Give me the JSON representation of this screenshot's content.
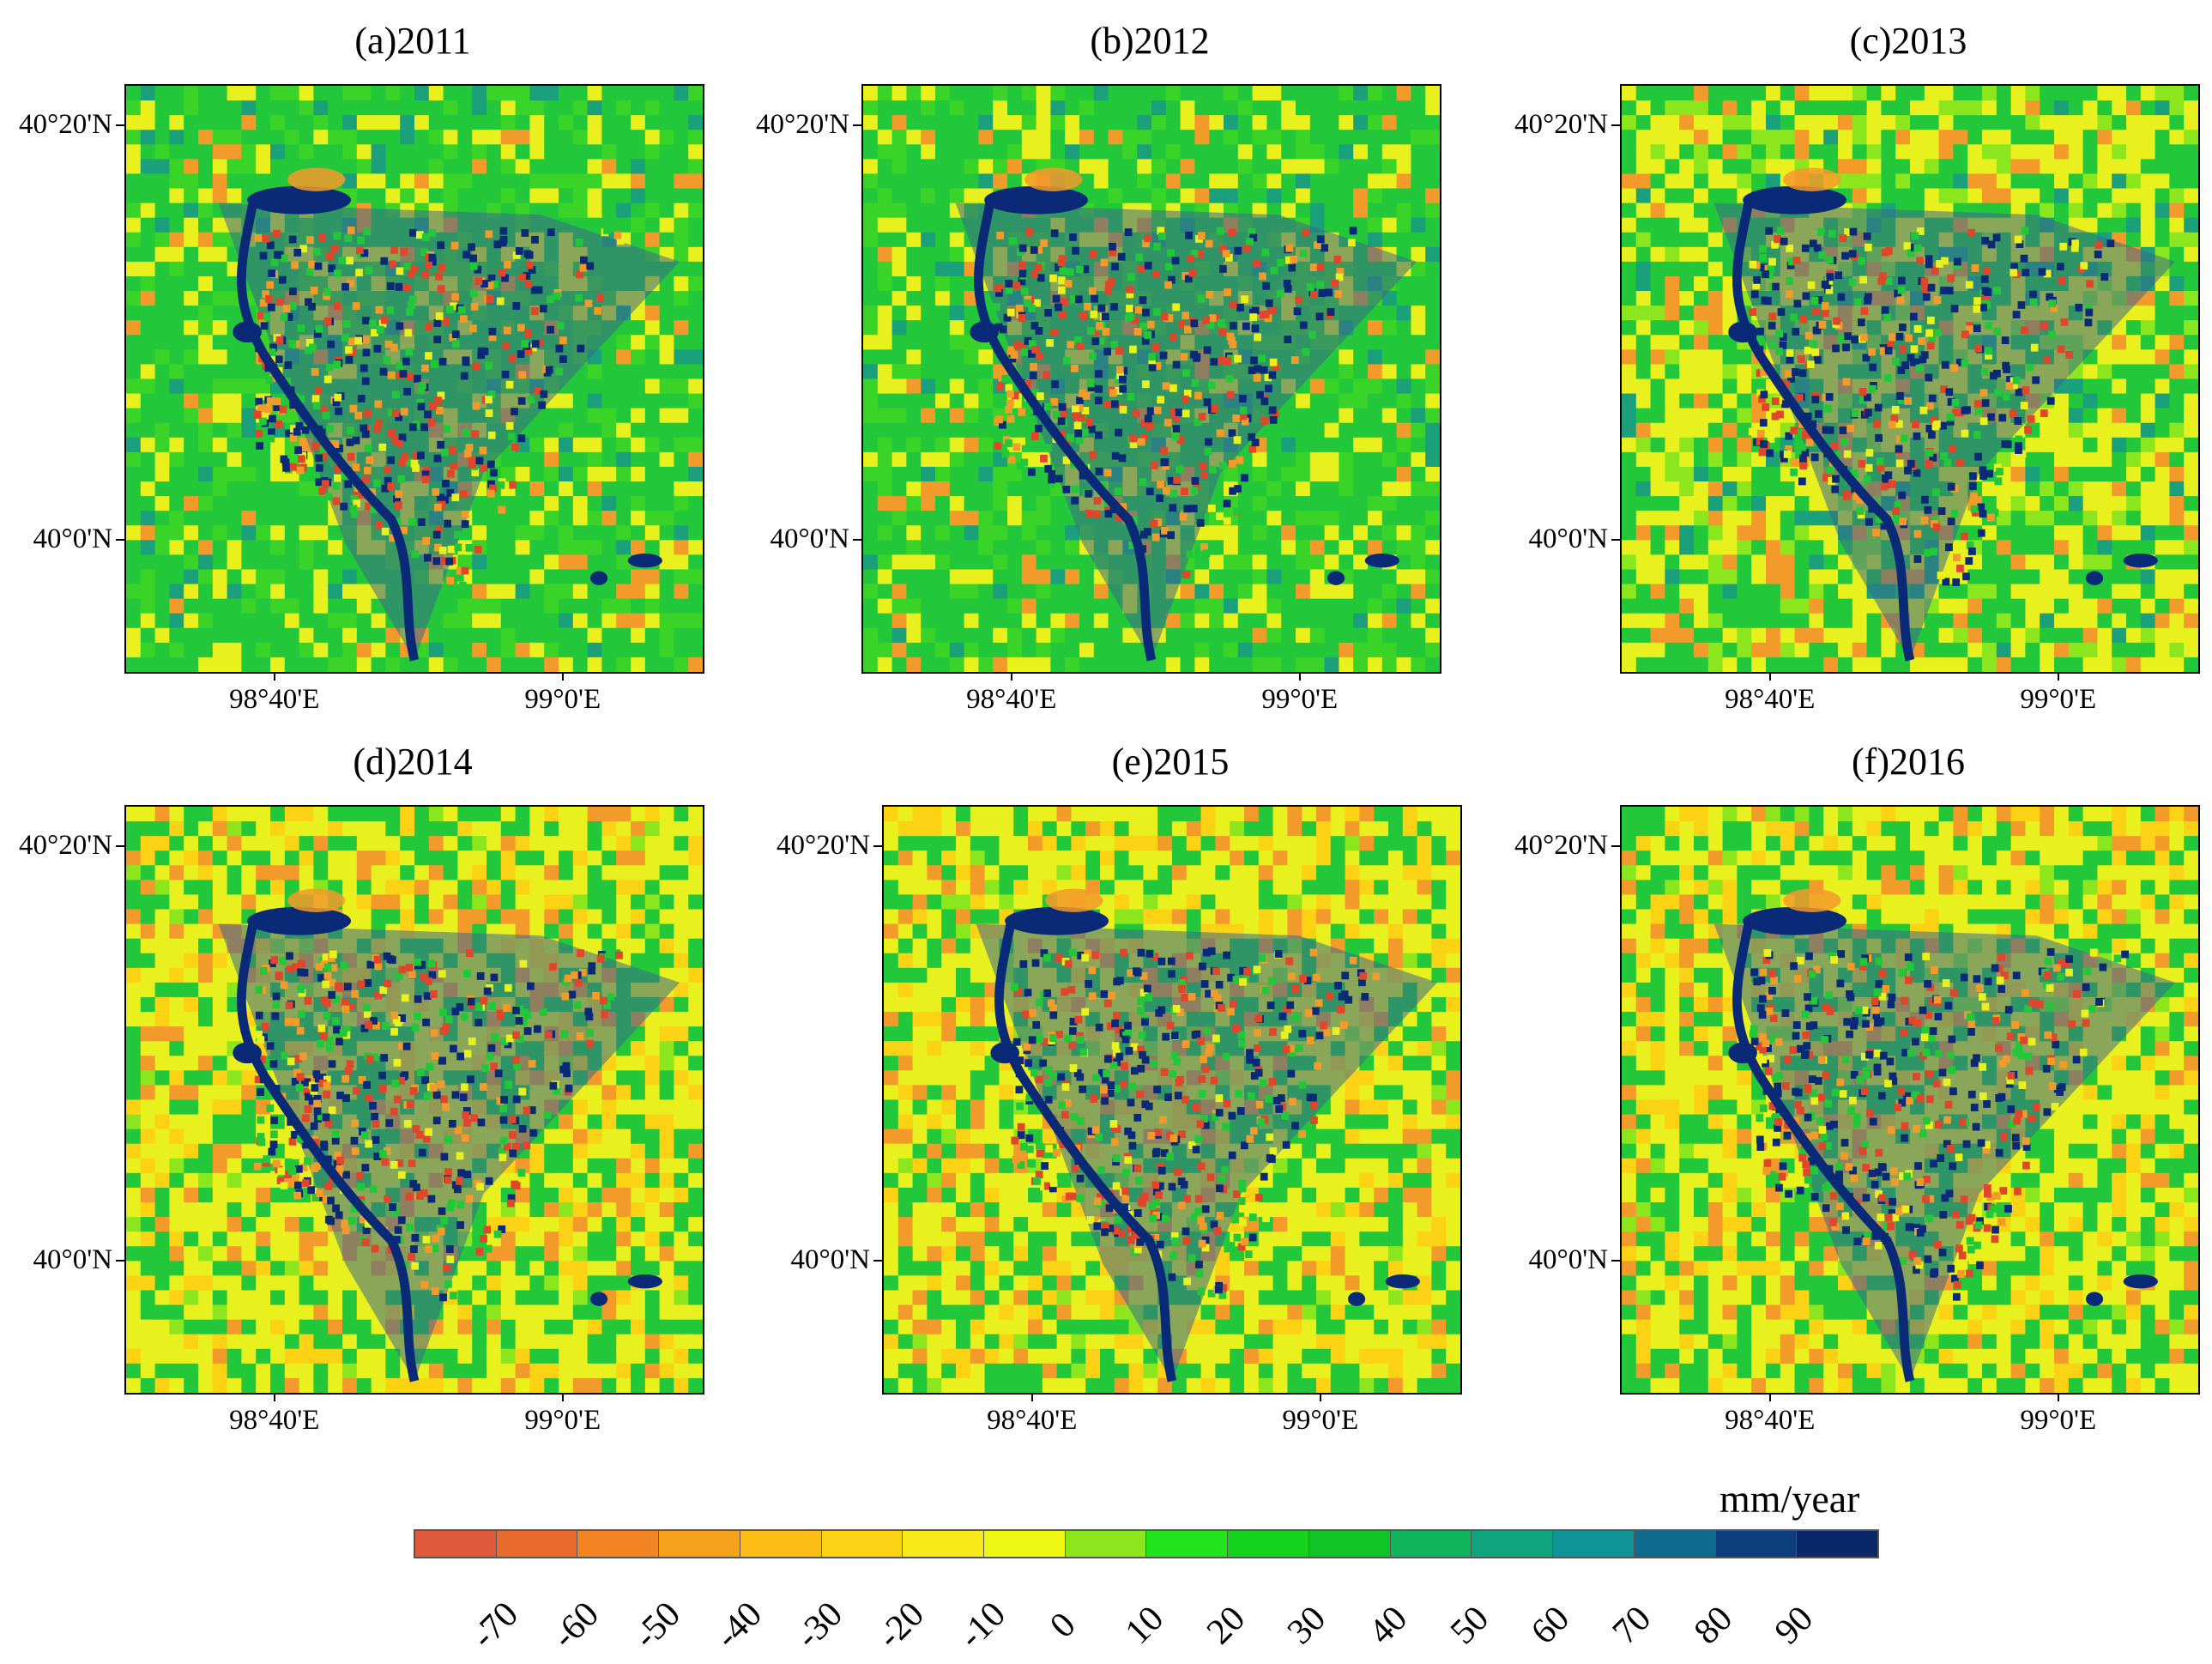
{
  "panels": [
    {
      "title": "(a)2011",
      "palette": "green"
    },
    {
      "title": "(b)2012",
      "palette": "green"
    },
    {
      "title": "(c)2013",
      "palette": "mixed"
    },
    {
      "title": "(d)2014",
      "palette": "yellow"
    },
    {
      "title": "(e)2015",
      "palette": "yellow"
    },
    {
      "title": "(f)2016",
      "palette": "yellow"
    }
  ],
  "axes": {
    "lat_labels": [
      "40°20'N",
      "40°0'N"
    ],
    "lon_labels": [
      "98°40'E",
      "99°0'E"
    ]
  },
  "colorbar": {
    "unit": "mm/year",
    "labels": [
      "-70",
      "-60",
      "-50",
      "-40",
      "-30",
      "-20",
      "-10",
      "0",
      "10",
      "20",
      "30",
      "40",
      "50",
      "60",
      "70",
      "80",
      "90"
    ],
    "colors": [
      "#e05a3c",
      "#ea6a2e",
      "#f28424",
      "#f7a21c",
      "#fbbd16",
      "#fbd214",
      "#f8e91a",
      "#eef812",
      "#8ce61e",
      "#22e41a",
      "#16d41e",
      "#10c428",
      "#10b45a",
      "#0ea47c",
      "#0e9496",
      "#0e6a8e",
      "#0c3e7e",
      "#0a2868"
    ]
  },
  "colors": {
    "water": "#0a2a78",
    "green": "#22c83a",
    "yellow": "#e8f01e",
    "orange": "#f29a2a",
    "red": "#e0462c"
  }
}
